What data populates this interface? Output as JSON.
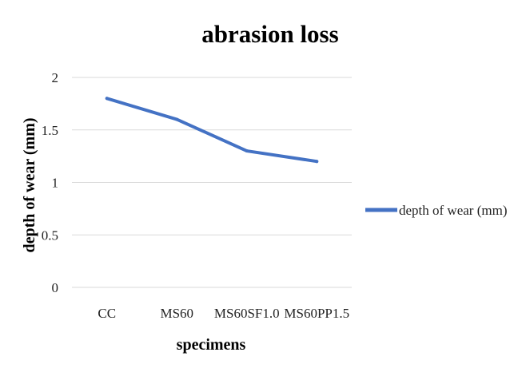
{
  "chart_data": {
    "type": "line",
    "title": "abrasion loss",
    "xlabel": "specimens",
    "ylabel": "depth of wear (mm)",
    "categories": [
      "CC",
      "MS60",
      "MS60SF1.0",
      "MS60PP1.5"
    ],
    "series": [
      {
        "name": "depth of wear (mm)",
        "values": [
          1.8,
          1.6,
          1.3,
          1.2
        ],
        "color": "#4472C4"
      }
    ],
    "ylim": [
      0,
      2
    ],
    "yticks": [
      "0",
      "0.5",
      "1",
      "1.5",
      "2"
    ],
    "grid": true,
    "legend_position": "right"
  }
}
